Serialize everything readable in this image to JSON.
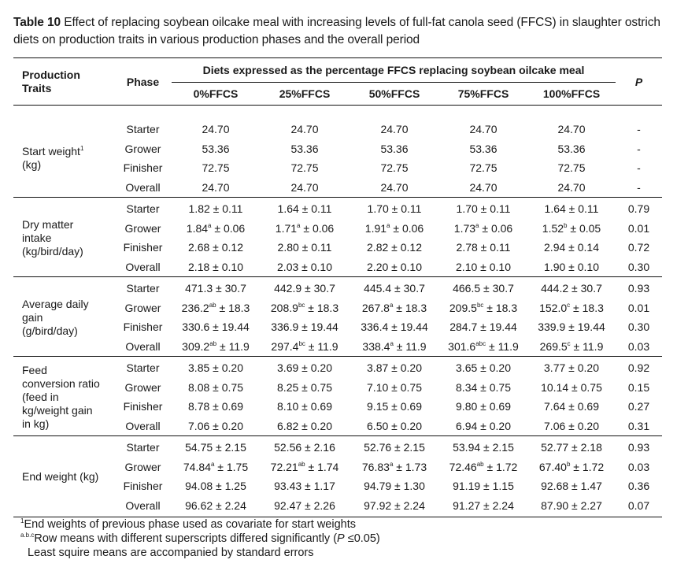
{
  "caption": {
    "label": "Table 10",
    "text": " Effect of replacing soybean oilcake meal with increasing levels of full-fat canola seed (FFCS) in slaughter ostrich diets on production traits in various production phases and the overall period"
  },
  "header": {
    "trait_line1": "Production",
    "trait_line2": "Traits",
    "phase": "Phase",
    "diets_span": "Diets expressed as the percentage FFCS replacing soybean oilcake meal",
    "p": "P",
    "diets": [
      "0%FFCS",
      "25%FFCS",
      "50%FFCS",
      "75%FFCS",
      "100%FFCS"
    ]
  },
  "sections": [
    {
      "trait_lines": [
        "Start weight",
        "(kg)"
      ],
      "trait_sup": "1",
      "rows": [
        {
          "phase": "Starter",
          "cells": [
            {
              "v": "24.70",
              "s": "",
              "e": ""
            },
            {
              "v": "24.70",
              "s": "",
              "e": ""
            },
            {
              "v": "24.70",
              "s": "",
              "e": ""
            },
            {
              "v": "24.70",
              "s": "",
              "e": ""
            },
            {
              "v": "24.70",
              "s": "",
              "e": ""
            }
          ],
          "p": "-"
        },
        {
          "phase": "Grower",
          "cells": [
            {
              "v": "53.36",
              "s": "",
              "e": ""
            },
            {
              "v": "53.36",
              "s": "",
              "e": ""
            },
            {
              "v": "53.36",
              "s": "",
              "e": ""
            },
            {
              "v": "53.36",
              "s": "",
              "e": ""
            },
            {
              "v": "53.36",
              "s": "",
              "e": ""
            }
          ],
          "p": "-"
        },
        {
          "phase": "Finisher",
          "cells": [
            {
              "v": "72.75",
              "s": "",
              "e": ""
            },
            {
              "v": "72.75",
              "s": "",
              "e": ""
            },
            {
              "v": "72.75",
              "s": "",
              "e": ""
            },
            {
              "v": "72.75",
              "s": "",
              "e": ""
            },
            {
              "v": "72.75",
              "s": "",
              "e": ""
            }
          ],
          "p": "-"
        },
        {
          "phase": "Overall",
          "cells": [
            {
              "v": "24.70",
              "s": "",
              "e": ""
            },
            {
              "v": "24.70",
              "s": "",
              "e": ""
            },
            {
              "v": "24.70",
              "s": "",
              "e": ""
            },
            {
              "v": "24.70",
              "s": "",
              "e": ""
            },
            {
              "v": "24.70",
              "s": "",
              "e": ""
            }
          ],
          "p": "-"
        }
      ]
    },
    {
      "trait_lines": [
        "Dry matter",
        "intake",
        "(kg/bird/day)"
      ],
      "trait_sup": "",
      "rows": [
        {
          "phase": "Starter",
          "cells": [
            {
              "v": "1.82",
              "s": "",
              "e": "0.11"
            },
            {
              "v": "1.64",
              "s": "",
              "e": "0.11"
            },
            {
              "v": "1.70",
              "s": "",
              "e": "0.11"
            },
            {
              "v": "1.70",
              "s": "",
              "e": "0.11"
            },
            {
              "v": "1.64",
              "s": "",
              "e": "0.11"
            }
          ],
          "p": "0.79"
        },
        {
          "phase": "Grower",
          "cells": [
            {
              "v": "1.84",
              "s": "a",
              "e": "0.06"
            },
            {
              "v": "1.71",
              "s": "a",
              "e": "0.06"
            },
            {
              "v": "1.91",
              "s": "a",
              "e": "0.06"
            },
            {
              "v": "1.73",
              "s": "a",
              "e": "0.06"
            },
            {
              "v": "1.52",
              "s": "b",
              "e": "0.05"
            }
          ],
          "p": "0.01"
        },
        {
          "phase": "Finisher",
          "cells": [
            {
              "v": "2.68",
              "s": "",
              "e": "0.12"
            },
            {
              "v": "2.80",
              "s": "",
              "e": "0.11"
            },
            {
              "v": "2.82",
              "s": "",
              "e": "0.12"
            },
            {
              "v": "2.78",
              "s": "",
              "e": "0.11"
            },
            {
              "v": "2.94",
              "s": "",
              "e": "0.14"
            }
          ],
          "p": "0.72"
        },
        {
          "phase": "Overall",
          "cells": [
            {
              "v": "2.18",
              "s": "",
              "e": "0.10"
            },
            {
              "v": "2.03",
              "s": "",
              "e": "0.10"
            },
            {
              "v": "2.20",
              "s": "",
              "e": "0.10"
            },
            {
              "v": "2.10",
              "s": "",
              "e": "0.10"
            },
            {
              "v": "1.90",
              "s": "",
              "e": "0.10"
            }
          ],
          "p": "0.30"
        }
      ]
    },
    {
      "trait_lines": [
        "Average daily",
        "gain",
        "(g/bird/day)"
      ],
      "trait_sup": "",
      "rows": [
        {
          "phase": "Starter",
          "cells": [
            {
              "v": "471.3",
              "s": "",
              "e": "30.7"
            },
            {
              "v": "442.9",
              "s": "",
              "e": "30.7"
            },
            {
              "v": "445.4",
              "s": "",
              "e": "30.7"
            },
            {
              "v": "466.5",
              "s": "",
              "e": "30.7"
            },
            {
              "v": "444.2",
              "s": "",
              "e": "30.7"
            }
          ],
          "p": "0.93"
        },
        {
          "phase": "Grower",
          "cells": [
            {
              "v": "236.2",
              "s": "ab",
              "e": "18.3"
            },
            {
              "v": "208.9",
              "s": "bc",
              "e": "18.3"
            },
            {
              "v": "267.8",
              "s": "a",
              "e": "18.3"
            },
            {
              "v": "209.5",
              "s": "bc",
              "e": "18.3"
            },
            {
              "v": "152.0",
              "s": "c",
              "e": "18.3"
            }
          ],
          "p": "0.01"
        },
        {
          "phase": "Finisher",
          "cells": [
            {
              "v": "330.6",
              "s": "",
              "e": "19.44"
            },
            {
              "v": "336.9",
              "s": "",
              "e": "19.44"
            },
            {
              "v": "336.4",
              "s": "",
              "e": "19.44"
            },
            {
              "v": "284.7",
              "s": "",
              "e": "19.44"
            },
            {
              "v": "339.9",
              "s": "",
              "e": "19.44"
            }
          ],
          "p": "0.30"
        },
        {
          "phase": "Overall",
          "cells": [
            {
              "v": "309.2",
              "s": "ab",
              "e": "11.9"
            },
            {
              "v": "297.4",
              "s": "bc",
              "e": "11.9"
            },
            {
              "v": "338.4",
              "s": "a",
              "e": "11.9"
            },
            {
              "v": "301.6",
              "s": "abc",
              "e": "11.9"
            },
            {
              "v": "269.5",
              "s": "c",
              "e": "11.9"
            }
          ],
          "p": "0.03"
        }
      ]
    },
    {
      "trait_lines": [
        "Feed",
        "conversion ratio",
        "(feed in",
        "kg/weight gain",
        "in kg)"
      ],
      "trait_sup": "",
      "rows": [
        {
          "phase": "Starter",
          "cells": [
            {
              "v": "3.85",
              "s": "",
              "e": "0.20"
            },
            {
              "v": "3.69",
              "s": "",
              "e": "0.20"
            },
            {
              "v": "3.87",
              "s": "",
              "e": "0.20"
            },
            {
              "v": "3.65",
              "s": "",
              "e": "0.20"
            },
            {
              "v": "3.77",
              "s": "",
              "e": "0.20"
            }
          ],
          "p": "0.92"
        },
        {
          "phase": "Grower",
          "cells": [
            {
              "v": "8.08",
              "s": "",
              "e": "0.75"
            },
            {
              "v": "8.25",
              "s": "",
              "e": "0.75"
            },
            {
              "v": "7.10",
              "s": "",
              "e": "0.75"
            },
            {
              "v": "8.34",
              "s": "",
              "e": "0.75"
            },
            {
              "v": "10.14",
              "s": "",
              "e": "0.75"
            }
          ],
          "p": "0.15"
        },
        {
          "phase": "Finisher",
          "cells": [
            {
              "v": "8.78",
              "s": "",
              "e": "0.69"
            },
            {
              "v": "8.10",
              "s": "",
              "e": "0.69"
            },
            {
              "v": "9.15",
              "s": "",
              "e": "0.69"
            },
            {
              "v": "9.80",
              "s": "",
              "e": "0.69"
            },
            {
              "v": "7.64",
              "s": "",
              "e": "0.69"
            }
          ],
          "p": "0.27"
        },
        {
          "phase": "Overall",
          "cells": [
            {
              "v": "7.06",
              "s": "",
              "e": "0.20"
            },
            {
              "v": "6.82",
              "s": "",
              "e": "0.20"
            },
            {
              "v": "6.50",
              "s": "",
              "e": "0.20"
            },
            {
              "v": "6.94",
              "s": "",
              "e": "0.20"
            },
            {
              "v": "7.06",
              "s": "",
              "e": "0.20"
            }
          ],
          "p": "0.31"
        }
      ]
    },
    {
      "trait_lines": [
        "End weight (kg)"
      ],
      "trait_sup": "",
      "rows": [
        {
          "phase": "Starter",
          "cells": [
            {
              "v": "54.75",
              "s": "",
              "e": "2.15"
            },
            {
              "v": "52.56",
              "s": "",
              "e": "2.16"
            },
            {
              "v": "52.76",
              "s": "",
              "e": "2.15"
            },
            {
              "v": "53.94",
              "s": "",
              "e": "2.15"
            },
            {
              "v": "52.77",
              "s": "",
              "e": "2.18"
            }
          ],
          "p": "0.93"
        },
        {
          "phase": "Grower",
          "cells": [
            {
              "v": "74.84",
              "s": "a",
              "e": "1.75"
            },
            {
              "v": "72.21",
              "s": "ab",
              "e": "1.74"
            },
            {
              "v": "76.83",
              "s": "a",
              "e": "1.73"
            },
            {
              "v": "72.46",
              "s": "ab",
              "e": "1.72"
            },
            {
              "v": "67.40",
              "s": "b",
              "e": "1.72"
            }
          ],
          "p": "0.03"
        },
        {
          "phase": "Finisher",
          "cells": [
            {
              "v": "94.08",
              "s": "",
              "e": "1.25"
            },
            {
              "v": "93.43",
              "s": "",
              "e": "1.17"
            },
            {
              "v": "94.79",
              "s": "",
              "e": "1.30"
            },
            {
              "v": "91.19",
              "s": "",
              "e": "1.15"
            },
            {
              "v": "92.68",
              "s": "",
              "e": "1.47"
            }
          ],
          "p": "0.36"
        },
        {
          "phase": "Overall",
          "cells": [
            {
              "v": "96.62",
              "s": "",
              "e": "2.24"
            },
            {
              "v": "92.47",
              "s": "",
              "e": "2.26"
            },
            {
              "v": "97.92",
              "s": "",
              "e": "2.24"
            },
            {
              "v": "91.27",
              "s": "",
              "e": "2.24"
            },
            {
              "v": "87.90",
              "s": "",
              "e": "2.27"
            }
          ],
          "p": "0.07"
        }
      ]
    }
  ],
  "pm_symbol": "±",
  "footnotes": {
    "fn1_marker": "1",
    "fn1_text": "End weights of previous phase used as covariate for start weights",
    "fn2_marker": "a.b.c",
    "fn2_text_before": "Row means with different superscripts differed significantly (",
    "fn2_p": "P",
    "fn2_text_after": " ≤0.05)",
    "fn3_text": "Least squire means are accompanied by standard errors"
  }
}
